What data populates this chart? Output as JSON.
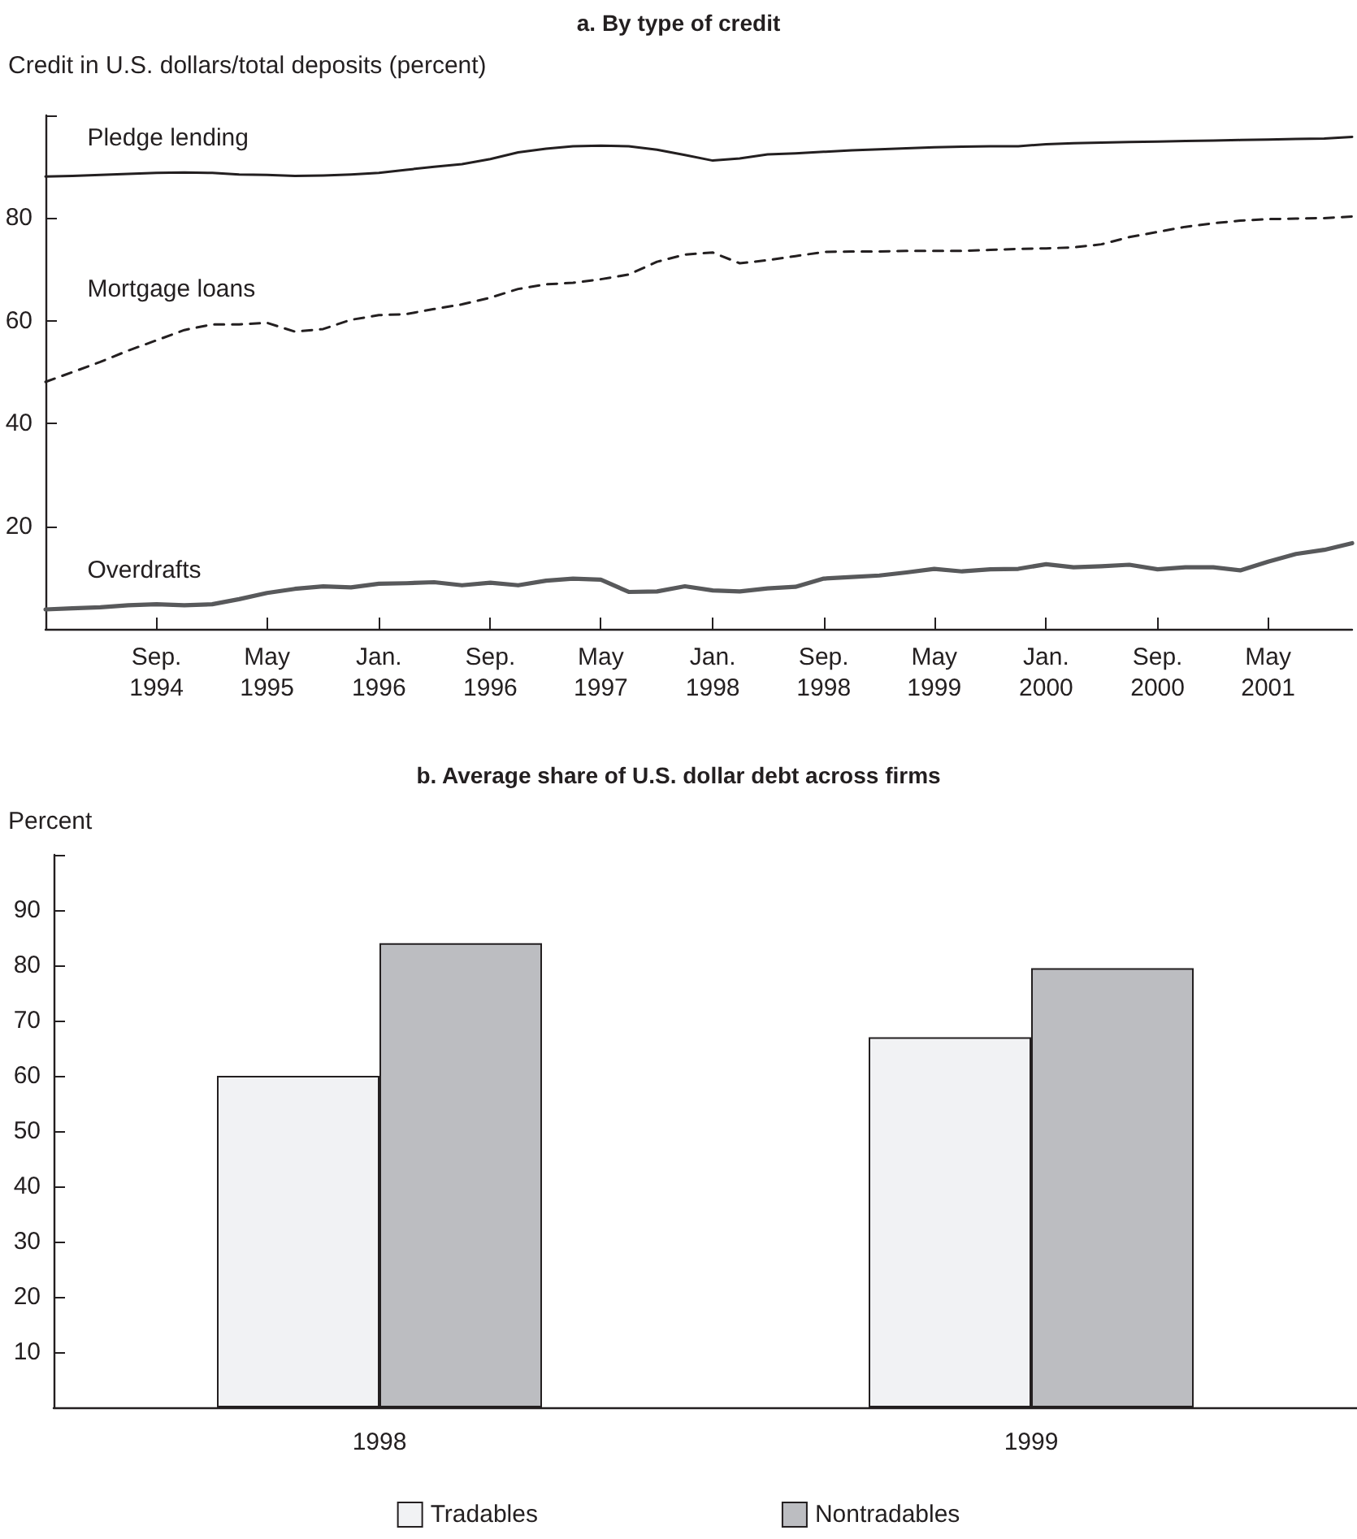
{
  "chart_data": [
    {
      "type": "line",
      "title": "a. By type of credit",
      "ylabel": "Credit in U.S. dollars/total deposits (percent)",
      "x": [
        "1994-01",
        "1994-03",
        "1994-05",
        "1994-07",
        "1994-09",
        "1994-11",
        "1995-01",
        "1995-03",
        "1995-05",
        "1995-07",
        "1995-09",
        "1995-11",
        "1996-01",
        "1996-03",
        "1996-05",
        "1996-07",
        "1996-09",
        "1996-11",
        "1997-01",
        "1997-03",
        "1997-05",
        "1997-07",
        "1997-09",
        "1997-11",
        "1998-01",
        "1998-03",
        "1998-05",
        "1998-07",
        "1998-09",
        "1998-11",
        "1999-01",
        "1999-03",
        "1999-05",
        "1999-07",
        "1999-09",
        "1999-11",
        "2000-01",
        "2000-03",
        "2000-05",
        "2000-07",
        "2000-09",
        "2000-11",
        "2001-01",
        "2001-03",
        "2001-05",
        "2001-07",
        "2001-09",
        "2001-11"
      ],
      "series": [
        {
          "name": "Pledge lending",
          "color": "#231f20",
          "line_style": "solid",
          "values": [
            88.1,
            88.2,
            88.4,
            88.6,
            88.8,
            88.9,
            88.8,
            88.5,
            88.4,
            88.2,
            88.3,
            88.5,
            88.8,
            89.4,
            90.0,
            90.5,
            91.5,
            92.8,
            93.5,
            94.0,
            94.1,
            94.0,
            93.3,
            92.3,
            91.2,
            91.6,
            92.4,
            92.6,
            92.9,
            93.2,
            93.4,
            93.6,
            93.8,
            93.9,
            94.0,
            94.0,
            94.4,
            94.6,
            94.7,
            94.8,
            94.9,
            95.0,
            95.1,
            95.2,
            95.3,
            95.4,
            95.5,
            95.8
          ]
        },
        {
          "name": "Mortgage loans",
          "color": "#231f20",
          "line_style": "dashed",
          "values": [
            48.1,
            50.0,
            52.0,
            54.2,
            56.2,
            58.2,
            59.3,
            59.3,
            59.6,
            57.9,
            58.4,
            60.2,
            61.1,
            61.3,
            62.3,
            63.2,
            64.5,
            66.2,
            67.1,
            67.4,
            68.1,
            69.0,
            71.5,
            72.9,
            73.3,
            71.2,
            71.8,
            72.6,
            73.4,
            73.5,
            73.5,
            73.6,
            73.6,
            73.6,
            73.8,
            74.0,
            74.1,
            74.3,
            74.9,
            76.3,
            77.3,
            78.3,
            79.0,
            79.5,
            79.8,
            79.9,
            80.0,
            80.3
          ]
        },
        {
          "name": "Overdrafts",
          "color": "#58595b",
          "line_style": "solid",
          "values": [
            3.8,
            4.0,
            4.2,
            4.6,
            4.8,
            4.6,
            4.8,
            5.8,
            7.0,
            7.8,
            8.3,
            8.1,
            8.8,
            8.9,
            9.1,
            8.5,
            9.0,
            8.5,
            9.4,
            9.8,
            9.6,
            7.2,
            7.3,
            8.3,
            7.5,
            7.3,
            7.9,
            8.2,
            9.8,
            10.1,
            10.4,
            11.0,
            11.7,
            11.2,
            11.6,
            11.7,
            12.6,
            12.0,
            12.2,
            12.5,
            11.6,
            12.0,
            12.0,
            11.4,
            13.1,
            14.6,
            15.4,
            16.7
          ]
        }
      ],
      "xlim": [
        "1994-01",
        "2001-11"
      ],
      "xticks": [
        {
          "value": "1994-09",
          "label": "Sep.\n1994"
        },
        {
          "value": "1995-05",
          "label": "May\n1995"
        },
        {
          "value": "1996-01",
          "label": "Jan.\n1996"
        },
        {
          "value": "1996-09",
          "label": "Sep.\n1996"
        },
        {
          "value": "1997-05",
          "label": "May\n1997"
        },
        {
          "value": "1998-01",
          "label": "Jan.\n1998"
        },
        {
          "value": "1998-09",
          "label": "Sep.\n1998"
        },
        {
          "value": "1999-05",
          "label": "May\n1999"
        },
        {
          "value": "2000-01",
          "label": "Jan.\n2000"
        },
        {
          "value": "2000-09",
          "label": "Sep.\n2000"
        },
        {
          "value": "2001-05",
          "label": "May\n2001"
        }
      ],
      "ylim": [
        0,
        100
      ],
      "yticks": [
        20,
        40,
        60,
        80,
        {
          "value": 100,
          "label": null
        }
      ]
    },
    {
      "type": "bar",
      "title": "b. Average share of U.S. dollar debt across firms",
      "ylabel": "Percent",
      "categories": [
        "1998",
        "1999"
      ],
      "series": [
        {
          "name": "Tradables",
          "color": "#f1f2f4",
          "values": [
            60,
            67
          ]
        },
        {
          "name": "Nontradables",
          "color": "#bcbdc1",
          "values": [
            84,
            79.5
          ]
        }
      ],
      "ylim": [
        0,
        100
      ],
      "yticks": [
        10,
        20,
        30,
        40,
        50,
        60,
        70,
        80,
        90,
        {
          "value": 100,
          "label": null
        }
      ],
      "legend": "bottom"
    }
  ]
}
